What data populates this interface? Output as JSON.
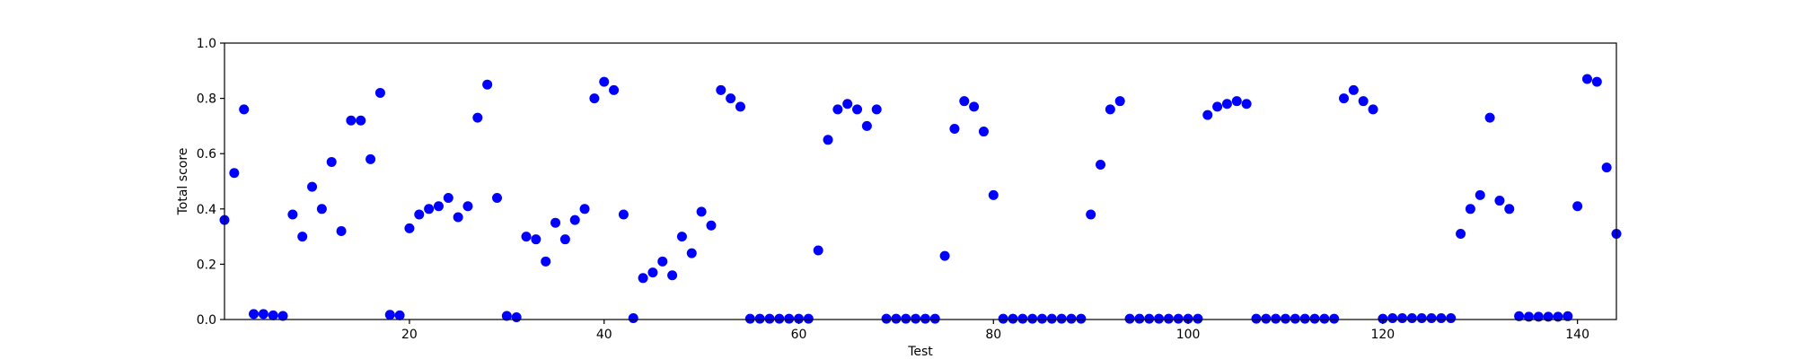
{
  "chart_data": {
    "type": "scatter",
    "title": "",
    "xlabel": "Test",
    "ylabel": "Total score",
    "xlim": [
      1,
      144
    ],
    "ylim": [
      0,
      1
    ],
    "x_ticks": [
      20,
      40,
      60,
      80,
      100,
      120,
      140
    ],
    "y_ticks": [
      0.0,
      0.2,
      0.4,
      0.6,
      0.8,
      1.0
    ],
    "grid": false,
    "legend": "none",
    "marker_color": "#0000ff",
    "series": [
      {
        "x": [
          1,
          2,
          3,
          4,
          5,
          6,
          7,
          8,
          9,
          10,
          11,
          12,
          13,
          14,
          15,
          16,
          17,
          18,
          19,
          20,
          21,
          22,
          23,
          24,
          25,
          26,
          27,
          28,
          29,
          30,
          31,
          32,
          33,
          34,
          35,
          36,
          37,
          38,
          39,
          40,
          41,
          42,
          43,
          44,
          45,
          46,
          47,
          48,
          49,
          50,
          51,
          52,
          53,
          54,
          55,
          56,
          57,
          58,
          59,
          60,
          61,
          62,
          63,
          64,
          65,
          66,
          67,
          68,
          69,
          70,
          71,
          72,
          73,
          74,
          75,
          76,
          77,
          78,
          79,
          80,
          81,
          82,
          83,
          84,
          85,
          86,
          87,
          88,
          89,
          90,
          91,
          92,
          93,
          94,
          95,
          96,
          97,
          98,
          99,
          100,
          101,
          102,
          103,
          104,
          105,
          106,
          107,
          108,
          109,
          110,
          111,
          112,
          113,
          114,
          115,
          116,
          117,
          118,
          119,
          120,
          121,
          122,
          123,
          124,
          125,
          126,
          127,
          128,
          129,
          130,
          131,
          132,
          133,
          134,
          135,
          136,
          137,
          138,
          139,
          140,
          141,
          142,
          143,
          144
        ],
        "y": [
          0.36,
          0.53,
          0.76,
          0.02,
          0.02,
          0.015,
          0.013,
          0.38,
          0.3,
          0.48,
          0.4,
          0.57,
          0.32,
          0.72,
          0.72,
          0.58,
          0.82,
          0.017,
          0.015,
          0.33,
          0.38,
          0.4,
          0.41,
          0.44,
          0.37,
          0.41,
          0.73,
          0.85,
          0.44,
          0.013,
          0.008,
          0.3,
          0.29,
          0.21,
          0.35,
          0.29,
          0.36,
          0.4,
          0.8,
          0.86,
          0.83,
          0.38,
          0.005,
          0.15,
          0.17,
          0.21,
          0.16,
          0.3,
          0.24,
          0.39,
          0.34,
          0.83,
          0.8,
          0.77,
          0.003,
          0.003,
          0.003,
          0.003,
          0.003,
          0.003,
          0.003,
          0.25,
          0.65,
          0.76,
          0.78,
          0.76,
          0.7,
          0.76,
          0.003,
          0.003,
          0.003,
          0.003,
          0.003,
          0.003,
          0.23,
          0.69,
          0.79,
          0.77,
          0.68,
          0.45,
          0.003,
          0.003,
          0.003,
          0.003,
          0.003,
          0.003,
          0.003,
          0.003,
          0.003,
          0.38,
          0.56,
          0.76,
          0.79,
          0.003,
          0.003,
          0.003,
          0.003,
          0.003,
          0.003,
          0.003,
          0.003,
          0.74,
          0.77,
          0.78,
          0.79,
          0.78,
          0.003,
          0.003,
          0.003,
          0.003,
          0.003,
          0.003,
          0.003,
          0.003,
          0.003,
          0.8,
          0.83,
          0.79,
          0.76,
          0.003,
          0.005,
          0.005,
          0.005,
          0.005,
          0.005,
          0.005,
          0.005,
          0.31,
          0.4,
          0.45,
          0.73,
          0.43,
          0.4,
          0.012,
          0.01,
          0.01,
          0.01,
          0.01,
          0.012,
          0.41,
          0.87,
          0.86,
          0.55,
          0.31
        ]
      }
    ]
  }
}
